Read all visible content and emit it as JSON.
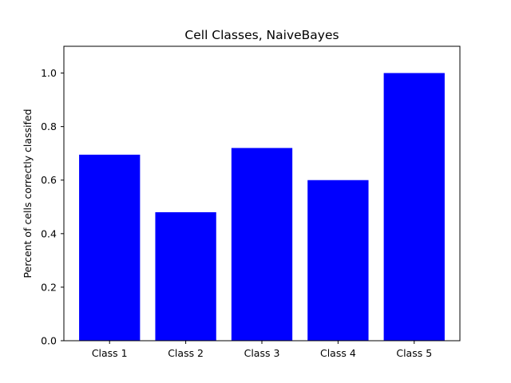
{
  "chart_data": {
    "type": "bar",
    "title": "Cell Classes, NaiveBayes",
    "xlabel": "",
    "ylabel": "Percent of cells correctly classifed",
    "categories": [
      "Class 1",
      "Class 2",
      "Class 3",
      "Class 4",
      "Class 5"
    ],
    "values": [
      0.695,
      0.48,
      0.72,
      0.6,
      1.0
    ],
    "ylim": [
      0,
      1.1
    ],
    "yticks": [
      0.0,
      0.2,
      0.4,
      0.6,
      0.8,
      1.0
    ],
    "ytick_labels": [
      "0.0",
      "0.2",
      "0.4",
      "0.6",
      "0.8",
      "1.0"
    ],
    "bar_color": "#0000ff",
    "grid": false,
    "legend": "none"
  }
}
